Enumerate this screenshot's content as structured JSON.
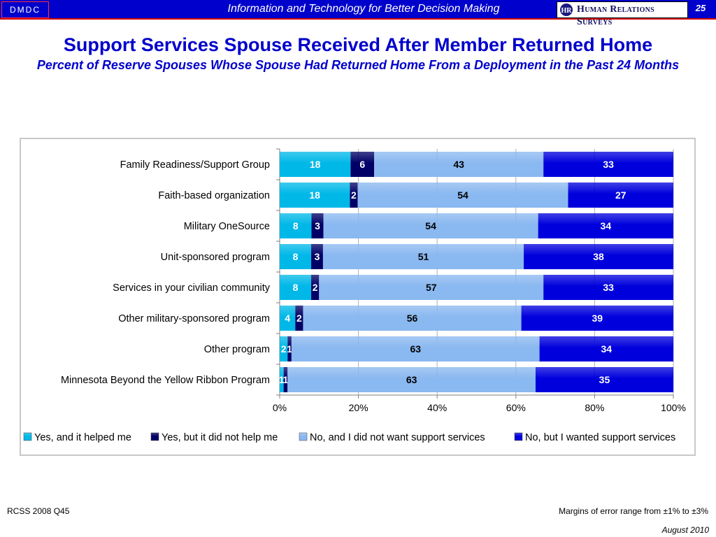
{
  "header": {
    "logo_left": "DMDC",
    "tagline": "Information and Technology for Better Decision Making",
    "logo_right": "Human Relations Surveys",
    "page_number": "25"
  },
  "title": "Support Services Spouse Received After Member Returned Home",
  "subtitle": "Percent of Reserve Spouses Whose Spouse Had Returned Home From a Deployment in the Past 24 Months",
  "footer": {
    "source": "RCSS 2008 Q45",
    "margin_note": "Margins of error range from ±1% to ±3%",
    "date": "August 2010"
  },
  "chart_data": {
    "type": "bar",
    "orientation": "horizontal",
    "stacked": "percent",
    "categories": [
      "Family Readiness/Support Group",
      "Faith-based organization",
      "Military OneSource",
      "Unit-sponsored program",
      "Services in your civilian community",
      "Other military-sponsored program",
      "Other program",
      "Minnesota Beyond the Yellow Ribbon Program"
    ],
    "series": [
      {
        "name": "Yes, and it helped me",
        "color": "#00b8e8",
        "values": [
          18,
          18,
          8,
          8,
          8,
          4,
          2,
          1
        ]
      },
      {
        "name": "Yes, but it did not help me",
        "color": "#000066",
        "values": [
          6,
          2,
          3,
          3,
          2,
          2,
          1,
          1
        ]
      },
      {
        "name": "No, and I did not want support services",
        "color": "#8ab8f0",
        "values": [
          43,
          54,
          54,
          51,
          57,
          56,
          63,
          63
        ]
      },
      {
        "name": "No, but I wanted support services",
        "color": "#0000dd",
        "values": [
          33,
          27,
          34,
          38,
          33,
          39,
          34,
          35
        ]
      }
    ],
    "xticks": [
      "0%",
      "20%",
      "40%",
      "60%",
      "80%",
      "100%"
    ],
    "xlim": [
      0,
      100
    ],
    "legend_position": "bottom",
    "grid": "vertical"
  }
}
